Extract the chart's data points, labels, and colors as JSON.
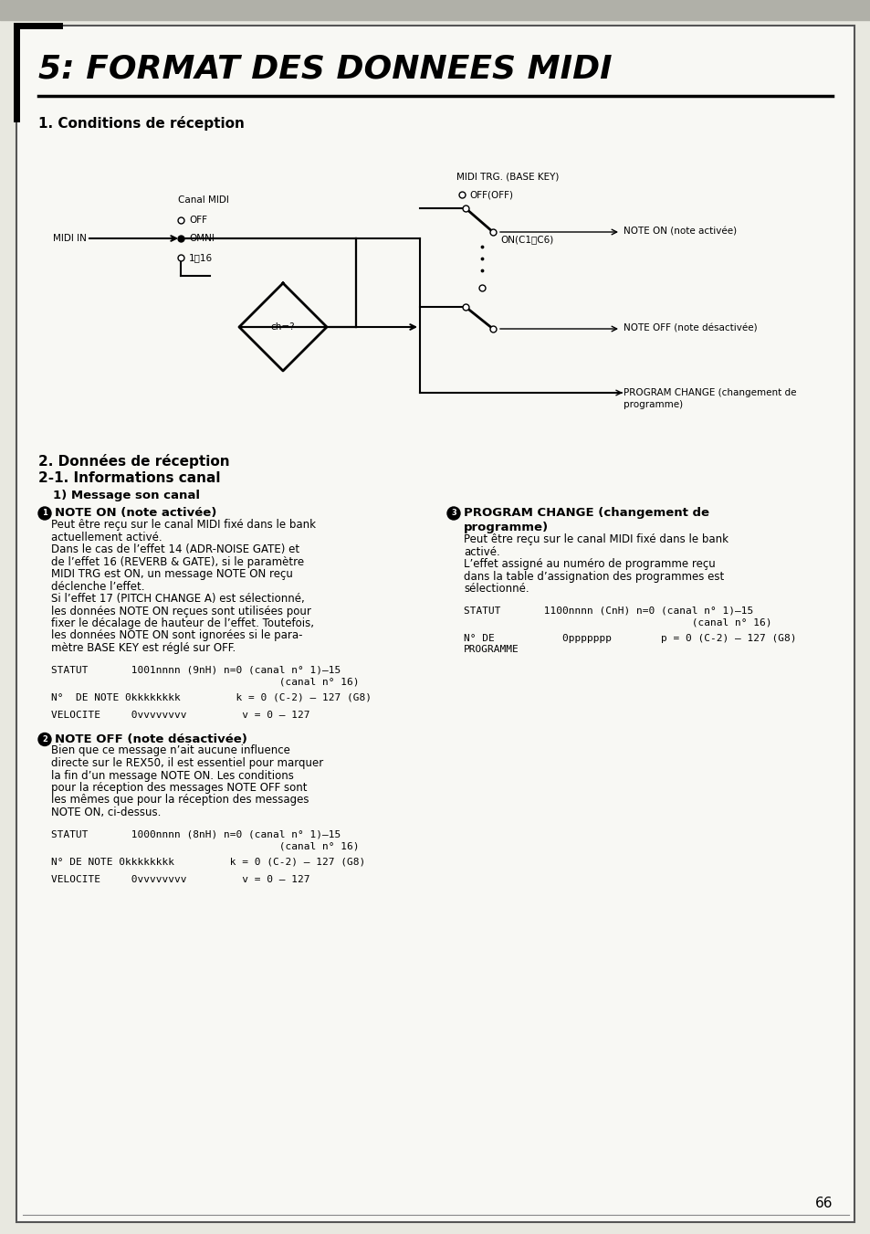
{
  "bg_color": "#f5f5f0",
  "page_bg": "#f8f8f4",
  "title": "5: FORMAT DES DONNEES MIDI",
  "section1": "1. Conditions de réception",
  "section2": "2. Données de réception",
  "section21": "2-1. Informations canal",
  "sub1": "1) Message son canal",
  "note_on_head": "NOTE ON (note activée)",
  "note_on_body": [
    "Peut être reçu sur le canal MIDI fixé dans le bank",
    "actuellement activé.",
    "Dans le cas de l’effet 14 (ADR-NOISE GATE) et",
    "de l’effet 16 (REVERB & GATE), si le paramètre",
    "MIDI TRG est ON, un message NOTE ON reçu",
    "déclenche l’effet.",
    "Si l’effet 17 (PITCH CHANGE A) est sélectionné,",
    "les données NOTE ON reçues sont utilisées pour",
    "fixer le décalage de hauteur de l’effet. Toutefois,",
    "les données NOTE ON sont ignorées si le para-",
    "mètre BASE KEY est réglé sur OFF."
  ],
  "note_on_stat1": "STATUT       1001nnnn (9nH) n=0 (canal n° 1)–15",
  "note_on_stat2": "                                     (canal n° 16)",
  "note_on_note": "N°  DE NOTE 0kkkkkkkk         k = 0 (C-2) – 127 (G8)",
  "note_on_vel": "VELOCITE     0vvvvvvvv         v = 0 – 127",
  "note_off_head": "NOTE OFF (note désactivée)",
  "note_off_body": [
    "Bien que ce message n’ait aucune influence",
    "directe sur le REX50, il est essentiel pour marquer",
    "la fin d’un message NOTE ON. Les conditions",
    "pour la réception des messages NOTE OFF sont",
    "les mêmes que pour la réception des messages",
    "NOTE ON, ci-dessus."
  ],
  "note_off_stat1": "STATUT       1000nnnn (8nH) n=0 (canal n° 1)–15",
  "note_off_stat2": "                                     (canal n° 16)",
  "note_off_note": "N° DE NOTE 0kkkkkkkk         k = 0 (C-2) – 127 (G8)",
  "note_off_vel": "VELOCITE     0vvvvvvvv         v = 0 – 127",
  "prog_head1": "PROGRAM CHANGE (changement de",
  "prog_head2": "programme)",
  "prog_body": [
    "Peut être reçu sur le canal MIDI fixé dans le bank",
    "activé.",
    "L’effet assigné au numéro de programme reçu",
    "dans la table d’assignation des programmes est",
    "sélectionné."
  ],
  "prog_stat1": "STATUT       1100nnnn (CnH) n=0 (canal n° 1)–15",
  "prog_stat2": "                                     (canal n° 16)",
  "prog_prog1": "N° DE           0ppppppp        p = 0 (C-2) – 127 (G8)",
  "prog_prog2": "PROGRAMME",
  "page_num": "66"
}
